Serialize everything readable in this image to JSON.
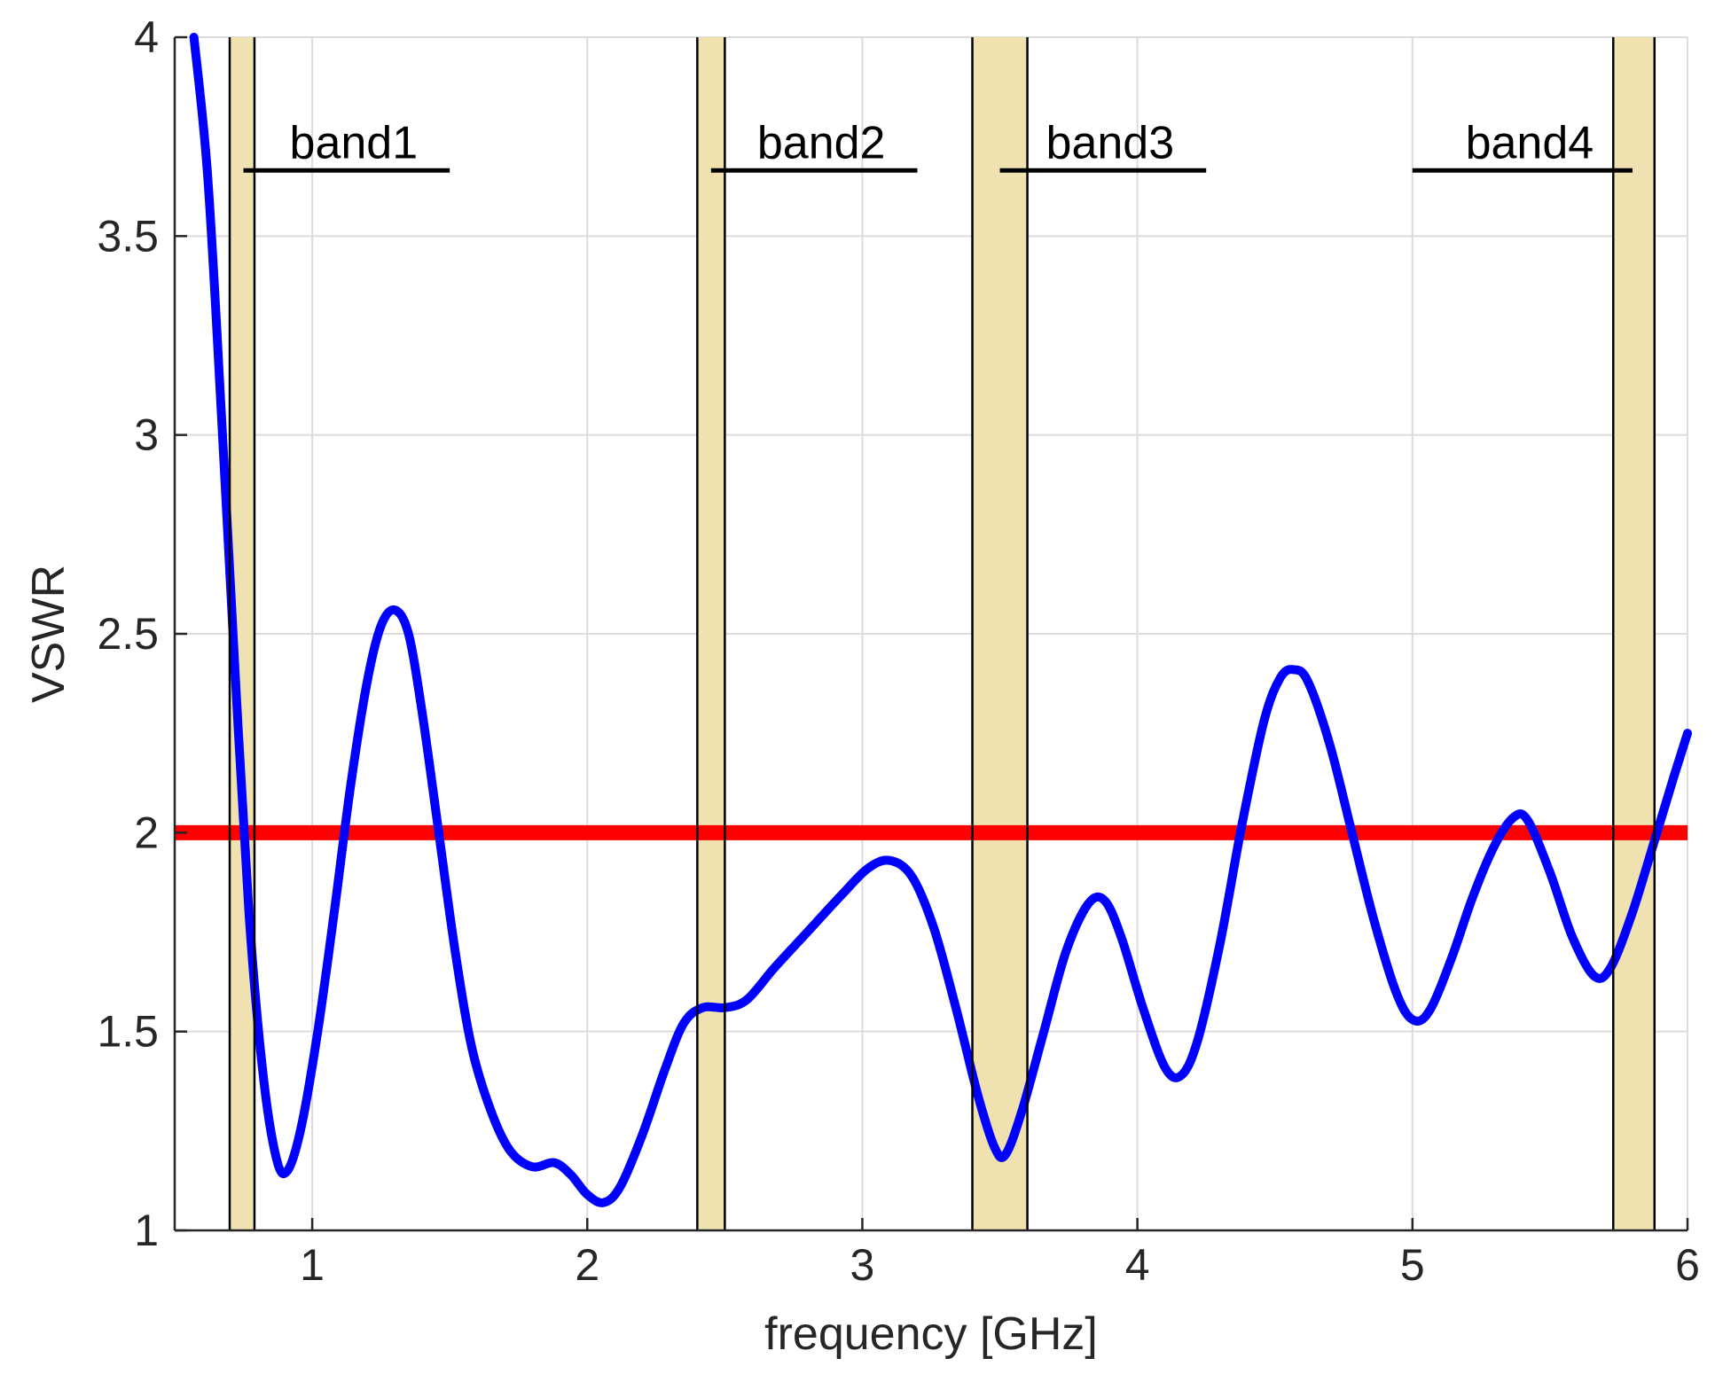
{
  "chart_data": {
    "type": "line",
    "xlabel": "frequency [GHz]",
    "ylabel": "VSWR",
    "xlim": [
      0.5,
      6
    ],
    "ylim": [
      1,
      4
    ],
    "xticks": [
      1,
      2,
      3,
      4,
      5,
      6
    ],
    "yticks": [
      1,
      1.5,
      2,
      2.5,
      3,
      3.5,
      4
    ],
    "xtick_labels": [
      "1",
      "2",
      "3",
      "4",
      "5",
      "6"
    ],
    "ytick_labels": [
      "1",
      "1.5",
      "2",
      "2.5",
      "3",
      "3.5",
      "4"
    ],
    "grid": true,
    "series": [
      {
        "color": "#0000ff",
        "points": [
          [
            0.57,
            4.0
          ],
          [
            0.62,
            3.65
          ],
          [
            0.67,
            3.05
          ],
          [
            0.72,
            2.4
          ],
          [
            0.77,
            1.8
          ],
          [
            0.82,
            1.4
          ],
          [
            0.87,
            1.18
          ],
          [
            0.91,
            1.15
          ],
          [
            0.96,
            1.26
          ],
          [
            1.02,
            1.5
          ],
          [
            1.08,
            1.8
          ],
          [
            1.14,
            2.12
          ],
          [
            1.2,
            2.38
          ],
          [
            1.25,
            2.52
          ],
          [
            1.3,
            2.56
          ],
          [
            1.35,
            2.5
          ],
          [
            1.4,
            2.3
          ],
          [
            1.46,
            2.0
          ],
          [
            1.52,
            1.7
          ],
          [
            1.58,
            1.46
          ],
          [
            1.65,
            1.3
          ],
          [
            1.72,
            1.2
          ],
          [
            1.8,
            1.16
          ],
          [
            1.88,
            1.17
          ],
          [
            1.94,
            1.14
          ],
          [
            2.0,
            1.09
          ],
          [
            2.06,
            1.07
          ],
          [
            2.12,
            1.11
          ],
          [
            2.2,
            1.24
          ],
          [
            2.28,
            1.4
          ],
          [
            2.35,
            1.52
          ],
          [
            2.42,
            1.56
          ],
          [
            2.5,
            1.56
          ],
          [
            2.58,
            1.58
          ],
          [
            2.68,
            1.66
          ],
          [
            2.8,
            1.75
          ],
          [
            2.92,
            1.84
          ],
          [
            3.02,
            1.91
          ],
          [
            3.1,
            1.93
          ],
          [
            3.18,
            1.89
          ],
          [
            3.26,
            1.76
          ],
          [
            3.34,
            1.56
          ],
          [
            3.42,
            1.34
          ],
          [
            3.48,
            1.21
          ],
          [
            3.52,
            1.19
          ],
          [
            3.58,
            1.3
          ],
          [
            3.66,
            1.5
          ],
          [
            3.74,
            1.7
          ],
          [
            3.82,
            1.82
          ],
          [
            3.88,
            1.83
          ],
          [
            3.94,
            1.74
          ],
          [
            4.02,
            1.56
          ],
          [
            4.1,
            1.41
          ],
          [
            4.16,
            1.39
          ],
          [
            4.22,
            1.48
          ],
          [
            4.3,
            1.72
          ],
          [
            4.38,
            2.02
          ],
          [
            4.46,
            2.28
          ],
          [
            4.52,
            2.39
          ],
          [
            4.57,
            2.41
          ],
          [
            4.62,
            2.38
          ],
          [
            4.7,
            2.22
          ],
          [
            4.78,
            2.0
          ],
          [
            4.86,
            1.78
          ],
          [
            4.94,
            1.6
          ],
          [
            5.0,
            1.53
          ],
          [
            5.06,
            1.55
          ],
          [
            5.14,
            1.68
          ],
          [
            5.22,
            1.84
          ],
          [
            5.3,
            1.97
          ],
          [
            5.37,
            2.04
          ],
          [
            5.42,
            2.03
          ],
          [
            5.5,
            1.9
          ],
          [
            5.58,
            1.74
          ],
          [
            5.66,
            1.64
          ],
          [
            5.72,
            1.66
          ],
          [
            5.8,
            1.8
          ],
          [
            5.88,
            1.98
          ],
          [
            5.95,
            2.14
          ],
          [
            6.0,
            2.25
          ]
        ]
      }
    ],
    "reference_line": {
      "y": 2,
      "color": "#ff0000"
    },
    "shaded_regions": [
      {
        "x0": 0.7,
        "x1": 0.79
      },
      {
        "x0": 2.4,
        "x1": 2.5
      },
      {
        "x0": 3.4,
        "x1": 3.6
      },
      {
        "x0": 5.73,
        "x1": 5.88
      }
    ],
    "shade_color": "#efe2b0",
    "bands": [
      {
        "label": "band1",
        "x0": 0.75,
        "x1": 1.5,
        "y": 3.665
      },
      {
        "label": "band2",
        "x0": 2.45,
        "x1": 3.2,
        "y": 3.665
      },
      {
        "label": "band3",
        "x0": 3.5,
        "x1": 4.25,
        "y": 3.665
      },
      {
        "label": "band4",
        "x0": 5.0,
        "x1": 5.8,
        "y": 3.665
      }
    ]
  }
}
